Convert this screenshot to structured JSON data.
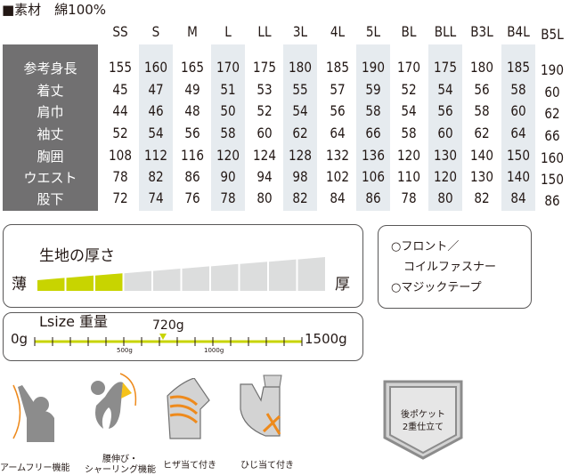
{
  "material": "■素材　綿100%",
  "sizes": [
    "SS",
    "S",
    "M",
    "L",
    "LL",
    "3L",
    "4L",
    "5L",
    "BL",
    "BLL",
    "B3L",
    "B4L",
    "B5L"
  ],
  "rows": [
    {
      "label": "参考身長",
      "values": [
        "155",
        "160",
        "165",
        "170",
        "175",
        "180",
        "185",
        "190",
        "170",
        "175",
        "180",
        "185",
        "190"
      ]
    },
    {
      "label": "着丈",
      "values": [
        "45",
        "47",
        "49",
        "51",
        "53",
        "55",
        "57",
        "59",
        "52",
        "54",
        "56",
        "58",
        "60"
      ]
    },
    {
      "label": "肩巾",
      "values": [
        "44",
        "46",
        "48",
        "50",
        "52",
        "54",
        "56",
        "58",
        "54",
        "56",
        "58",
        "60",
        "62"
      ]
    },
    {
      "label": "袖丈",
      "values": [
        "52",
        "54",
        "56",
        "58",
        "60",
        "62",
        "64",
        "66",
        "58",
        "60",
        "62",
        "64",
        "66"
      ]
    },
    {
      "label": "胸囲",
      "values": [
        "108",
        "112",
        "116",
        "120",
        "124",
        "128",
        "132",
        "136",
        "120",
        "130",
        "140",
        "150",
        "160"
      ]
    },
    {
      "label": "ウエスト",
      "values": [
        "78",
        "82",
        "86",
        "90",
        "94",
        "98",
        "102",
        "106",
        "110",
        "120",
        "130",
        "140",
        "150"
      ]
    },
    {
      "label": "股下",
      "values": [
        "72",
        "74",
        "76",
        "78",
        "80",
        "82",
        "84",
        "86",
        "78",
        "80",
        "82",
        "84",
        "86"
      ]
    }
  ],
  "thickness": {
    "title": "生地の厚さ",
    "thin": "薄",
    "thick": "厚",
    "level": 3,
    "max": 10,
    "active_color": "#c8d400",
    "inactive_color": "#dcdddd"
  },
  "weight": {
    "title": "Lsize 重量",
    "value_label": "720g",
    "value": 720,
    "min_label": "0g",
    "max_label": "1500g",
    "min": 0,
    "max": 1500,
    "tick_500": "500g",
    "tick_1000": "1000g",
    "color": "#c8d400"
  },
  "features": {
    "line1": "○フロント／",
    "line2": "コイルファスナー",
    "line3": "○マジックテープ"
  },
  "icons": [
    {
      "name": "arm-free",
      "caption": "アームフリー機能"
    },
    {
      "name": "waist-stretch",
      "caption1": "腰伸び・",
      "caption2": "シャーリング機能"
    },
    {
      "name": "knee-pad",
      "caption": "ヒザ当て付き"
    },
    {
      "name": "elbow-pad",
      "caption": "ひじ当て付き"
    },
    {
      "name": "back-pocket",
      "text1": "後ポケット",
      "text2": "2重仕立て"
    }
  ],
  "colors": {
    "orange": "#ee8a1c",
    "gray": "#8c8c8c",
    "label_bg": "#717071",
    "shade": "#e6ebef"
  }
}
